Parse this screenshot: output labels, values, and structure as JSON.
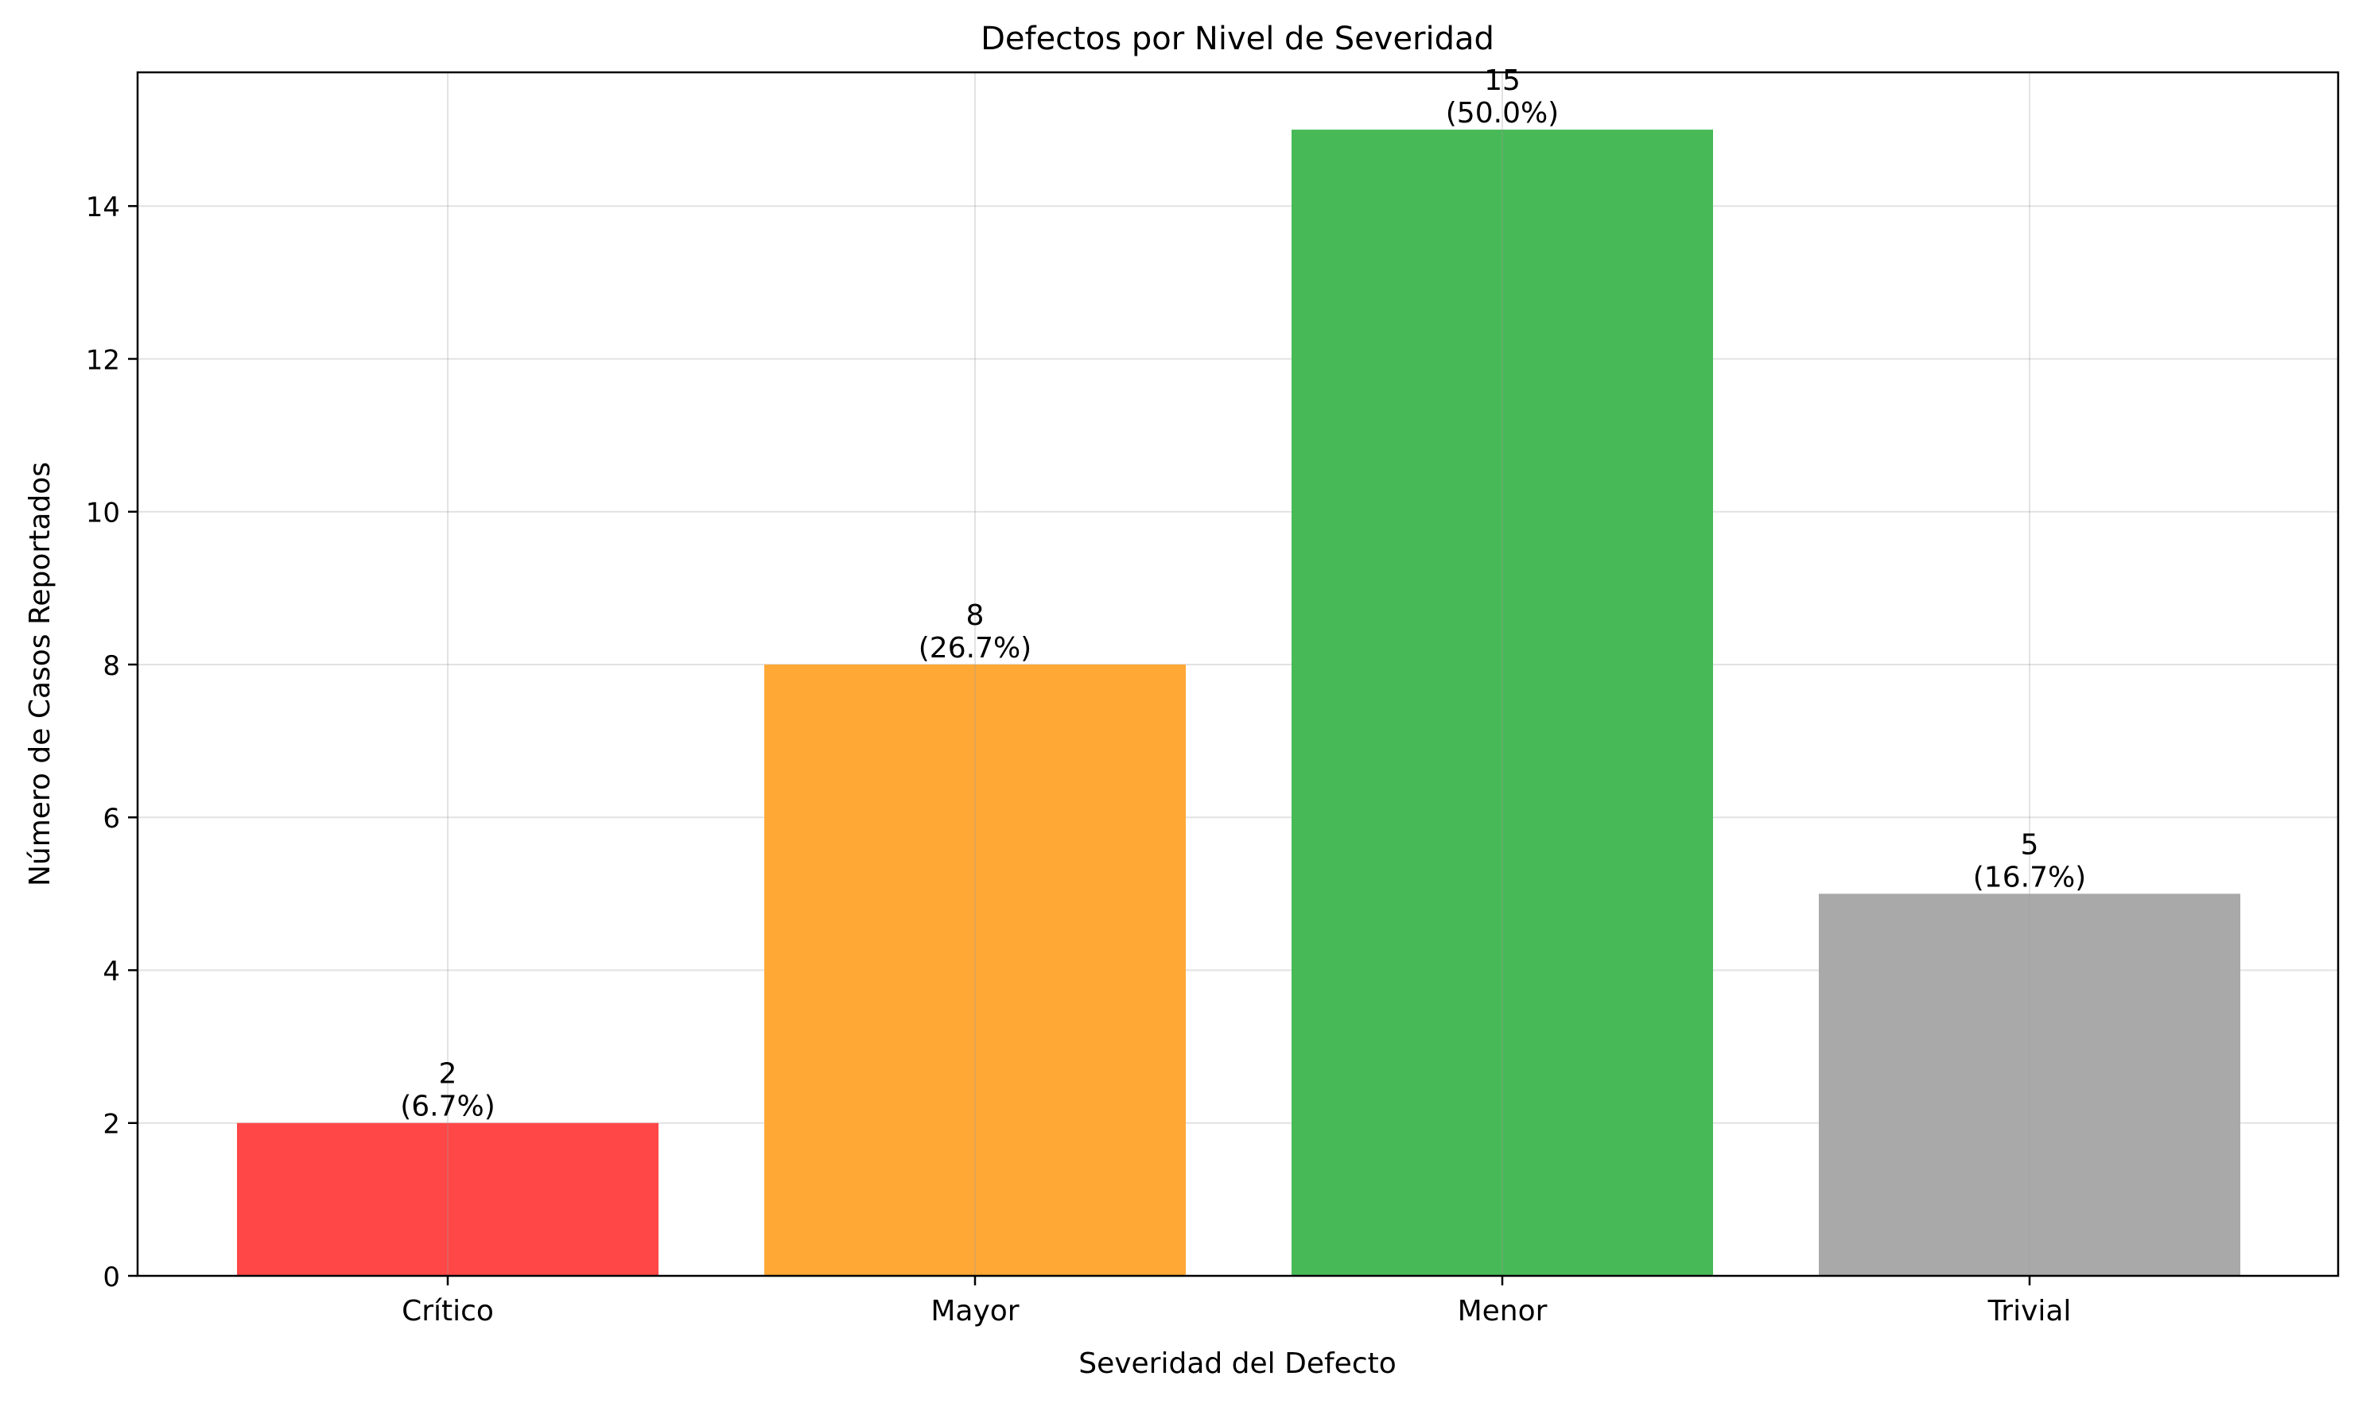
{
  "chart_data": {
    "type": "bar",
    "title": "Defectos por Nivel de Severidad",
    "xlabel": "Severidad del Defecto",
    "ylabel": "Número de Casos Reportados",
    "categories": [
      "Crítico",
      "Mayor",
      "Menor",
      "Trivial"
    ],
    "values": [
      2,
      8,
      15,
      5
    ],
    "value_labels": [
      "2",
      "8",
      "15",
      "5"
    ],
    "percent_labels": [
      "(6.7%)",
      "(26.7%)",
      "(50.0%)",
      "(16.7%)"
    ],
    "colors": [
      "#ff4747",
      "#ffa836",
      "#47ba57",
      "#a9a9a9"
    ],
    "ylim": [
      0,
      15.75
    ],
    "yticks": [
      0,
      2,
      4,
      6,
      8,
      10,
      12,
      14
    ],
    "grid": true
  }
}
